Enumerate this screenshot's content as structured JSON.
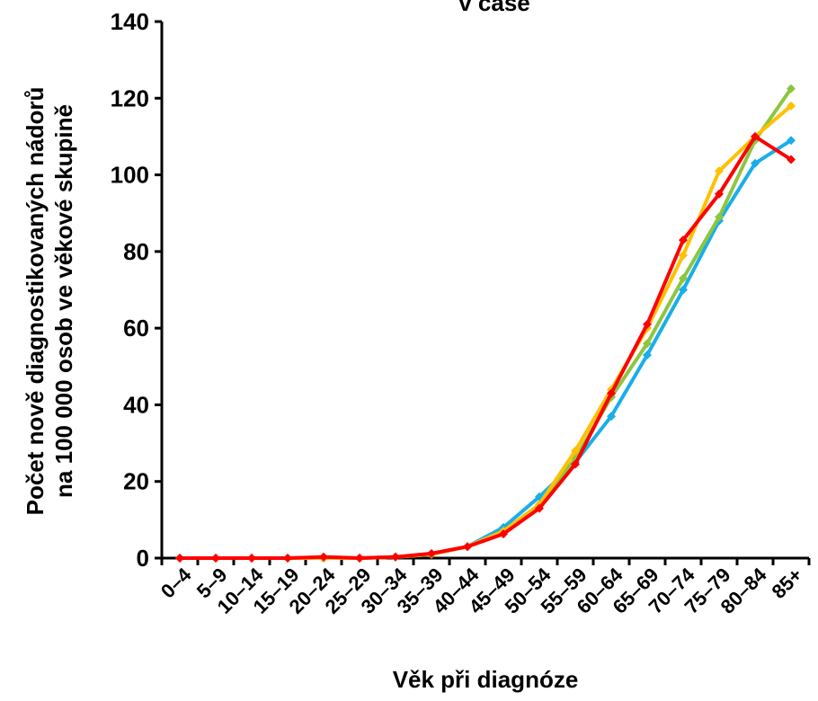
{
  "chart_data": {
    "type": "line",
    "title": "v čase",
    "xlabel": "Věk při diagnóze",
    "ylabel": [
      "Počet nově diagnostikovaných nádorů",
      "na 100 000 osob ve věkové skupině"
    ],
    "ylim": [
      0,
      140
    ],
    "y_ticks": [
      "0",
      "20",
      "40",
      "60",
      "80",
      "100",
      "120",
      "140"
    ],
    "grid": false,
    "categories": [
      "0–4",
      "5–9",
      "10–14",
      "15–19",
      "20–24",
      "25–29",
      "30–34",
      "35–39",
      "40–44",
      "45–49",
      "50–54",
      "55–59",
      "60–64",
      "65–69",
      "70–74",
      "75–79",
      "80–84",
      "85+"
    ],
    "series": [
      {
        "color": "#1aaee8",
        "values": [
          0,
          0,
          0,
          0,
          0,
          0,
          0.3,
          1,
          3,
          8,
          16,
          25,
          37,
          53,
          70,
          88,
          103,
          109
        ]
      },
      {
        "color": "#8cc63f",
        "values": [
          0,
          0,
          0,
          0,
          0,
          0,
          0.3,
          1,
          3,
          7,
          14,
          26,
          42,
          56,
          73,
          89,
          109,
          122.5
        ]
      },
      {
        "color": "#ffc000",
        "values": [
          0,
          0,
          0,
          0,
          0,
          0,
          0.3,
          1,
          3,
          7,
          14,
          28,
          44,
          60,
          79,
          101,
          110,
          118
        ]
      },
      {
        "color": "#ff0000",
        "values": [
          0,
          0,
          0,
          0,
          0.3,
          0,
          0.3,
          1.2,
          3,
          6.3,
          13,
          24.5,
          43,
          61,
          83,
          95,
          110,
          104
        ]
      }
    ]
  }
}
